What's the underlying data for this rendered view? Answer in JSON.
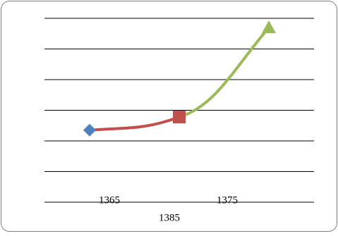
{
  "chart_data": {
    "type": "line",
    "categories": [
      "1365",
      "1385",
      "1375"
    ],
    "values": [
      2.35,
      2.78,
      5.7
    ],
    "colors": [
      "#4f81bd",
      "#c0504d",
      "#9bbb59"
    ],
    "ylim": [
      0,
      6
    ],
    "yticks": [
      0,
      1,
      2,
      3,
      4,
      5,
      6
    ],
    "grid": true
  }
}
